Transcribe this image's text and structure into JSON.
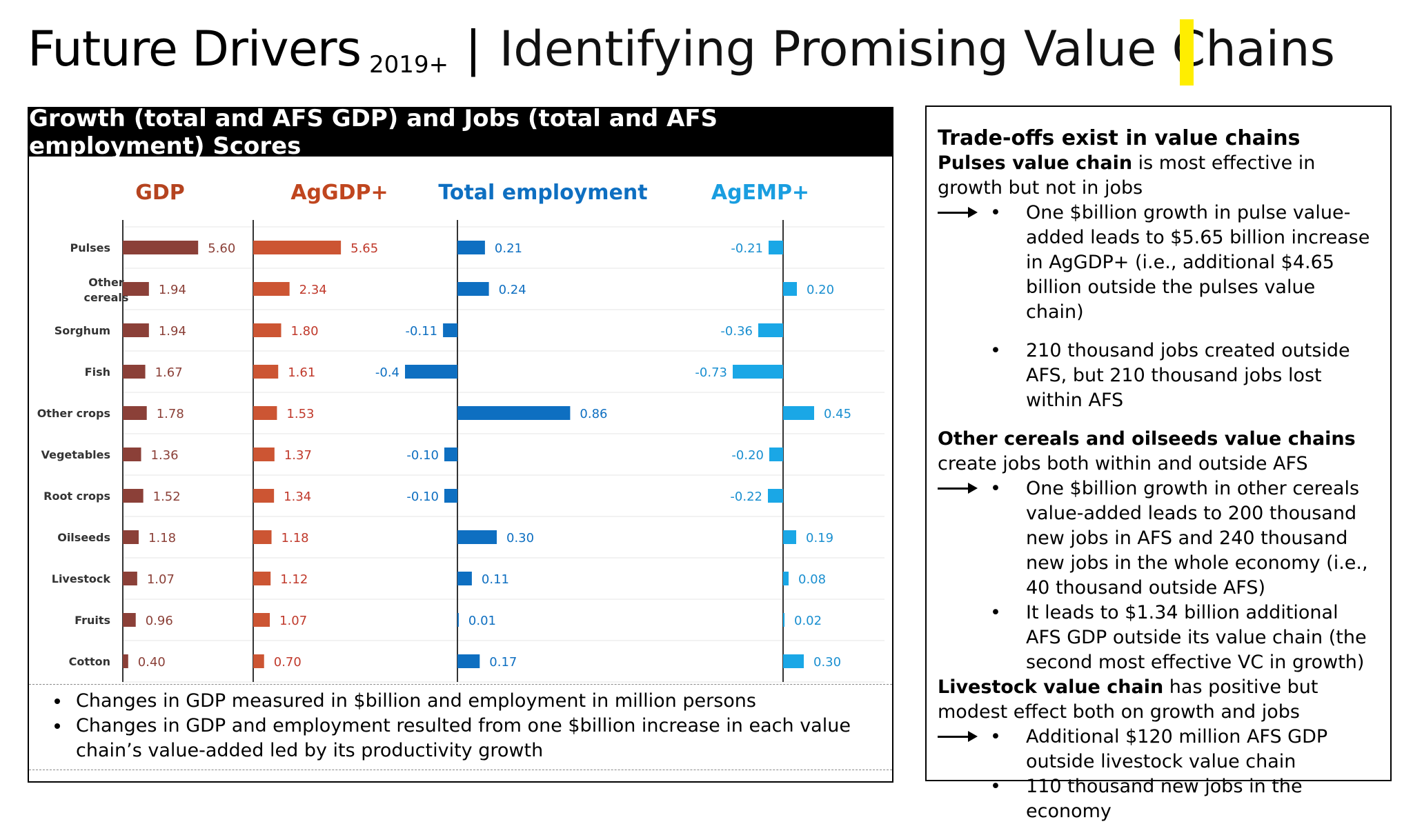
{
  "title": {
    "main": "Future Drivers",
    "sub": "2019+",
    "separator": "|",
    "rest": "Identifying Promising Value Chains"
  },
  "panel": {
    "header": "Growth (total and AFS GDP) and Jobs (total and AFS employment) Scores"
  },
  "chart_data": {
    "type": "bar",
    "orientation": "horizontal",
    "categories": [
      "Pulses",
      "Other cereals",
      "Sorghum",
      "Fish",
      "Other crops",
      "Vegetables",
      "Root crops",
      "Oilseeds",
      "Livestock",
      "Fruits",
      "Cotton"
    ],
    "series": [
      {
        "name": "GDP",
        "color": "#8b4038",
        "labelColor": "#8b4038",
        "values": [
          5.6,
          1.94,
          1.94,
          1.67,
          1.78,
          1.36,
          1.52,
          1.18,
          1.07,
          0.96,
          0.4
        ]
      },
      {
        "name": "AgGDP+",
        "color": "#cc5533",
        "labelColor": "#c0392b",
        "values": [
          5.65,
          2.34,
          1.8,
          1.61,
          1.53,
          1.37,
          1.34,
          1.18,
          1.12,
          1.07,
          0.7
        ]
      },
      {
        "name": "Total employment",
        "color": "#0e6fc1",
        "labelColor": "#0e6fc1",
        "values": [
          0.21,
          0.24,
          -0.11,
          -0.4,
          0.86,
          -0.1,
          -0.1,
          0.3,
          0.11,
          0.01,
          0.17
        ],
        "labels": [
          "0.21",
          "0.24",
          "-0.11",
          "-0.4",
          "0.86",
          "-0.10",
          "-0.10",
          "0.30",
          "0.11",
          "0.01",
          "0.17"
        ]
      },
      {
        "name": "AgEMP+",
        "color": "#1aa7e6",
        "labelColor": "#1a8fd0",
        "values": [
          -0.21,
          0.2,
          -0.36,
          -0.73,
          0.45,
          -0.2,
          -0.22,
          0.19,
          0.08,
          0.02,
          0.3
        ]
      }
    ],
    "titleColors": {
      "GDP": "#b5431f",
      "AgGDP+": "#c0461f",
      "Total employment": "#0e6fc1",
      "AgEMP+": "#1a9ee0"
    }
  },
  "notes": [
    "Changes in GDP measured in $billion and employment in million persons",
    "Changes in GDP and employment resulted from one $billion increase in each value chain’s value-added led by its productivity growth"
  ],
  "right": {
    "heading": "Trade-offs exist in value chains",
    "s1_bold": "Pulses value chain",
    "s1_rest": " is most effective in growth but not in jobs",
    "s1_b1": "One $billion growth in pulse value-added leads to $5.65 billion increase in AgGDP+ (i.e., additional $4.65 billion outside the pulses value chain)",
    "s1_b2": "210 thousand jobs created outside AFS, but 210 thousand jobs lost within AFS",
    "s2_bold": "Other cereals and oilseeds value chains",
    "s2_rest": " create jobs both within and outside AFS",
    "s2_b1": "One $billion growth in other cereals value-added leads to 200 thousand new jobs in AFS and 240 thousand new jobs in the whole economy (i.e., 40 thousand outside AFS)",
    "s2_b2": "It leads to $1.34 billion additional AFS GDP outside its value chain (the second most effective VC in growth)",
    "s3_bold": "Livestock value chain",
    "s3_rest": " has positive but modest effect both on growth and jobs",
    "s3_b1": "Additional $120 million AFS GDP outside livestock value chain",
    "s3_b2": "110 thousand new jobs in the economy",
    "bullet": "•"
  }
}
